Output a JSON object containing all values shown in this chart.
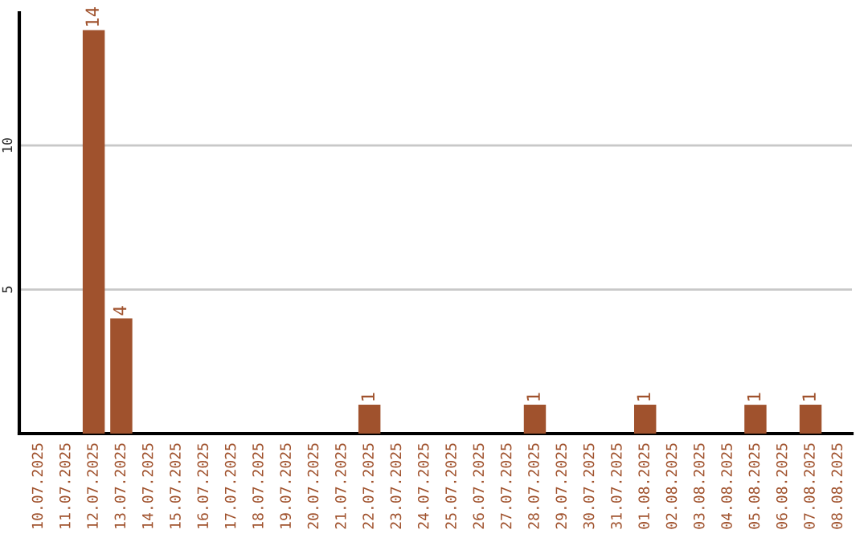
{
  "chart_data": {
    "type": "bar",
    "categories": [
      "10.07.2025",
      "11.07.2025",
      "12.07.2025",
      "13.07.2025",
      "14.07.2025",
      "15.07.2025",
      "16.07.2025",
      "17.07.2025",
      "18.07.2025",
      "19.07.2025",
      "20.07.2025",
      "21.07.2025",
      "22.07.2025",
      "23.07.2025",
      "24.07.2025",
      "25.07.2025",
      "26.07.2025",
      "27.07.2025",
      "28.07.2025",
      "29.07.2025",
      "30.07.2025",
      "31.07.2025",
      "01.08.2025",
      "02.08.2025",
      "03.08.2025",
      "04.08.2025",
      "05.08.2025",
      "06.08.2025",
      "07.08.2025",
      "08.08.2025"
    ],
    "values": [
      null,
      null,
      14,
      4,
      null,
      null,
      null,
      null,
      null,
      null,
      null,
      null,
      1,
      null,
      null,
      null,
      null,
      null,
      1,
      null,
      null,
      null,
      1,
      null,
      null,
      null,
      1,
      null,
      1,
      null
    ],
    "value_labels": [
      null,
      null,
      "14",
      "4",
      null,
      null,
      null,
      null,
      null,
      null,
      null,
      null,
      "1",
      null,
      null,
      null,
      null,
      null,
      "1",
      null,
      null,
      null,
      "1",
      null,
      null,
      null,
      "1",
      null,
      "1",
      null
    ],
    "color": "#a0522d",
    "ylim": [
      0,
      14.6
    ],
    "yticks": [
      5,
      10
    ],
    "grid": "y",
    "legend": false
  }
}
